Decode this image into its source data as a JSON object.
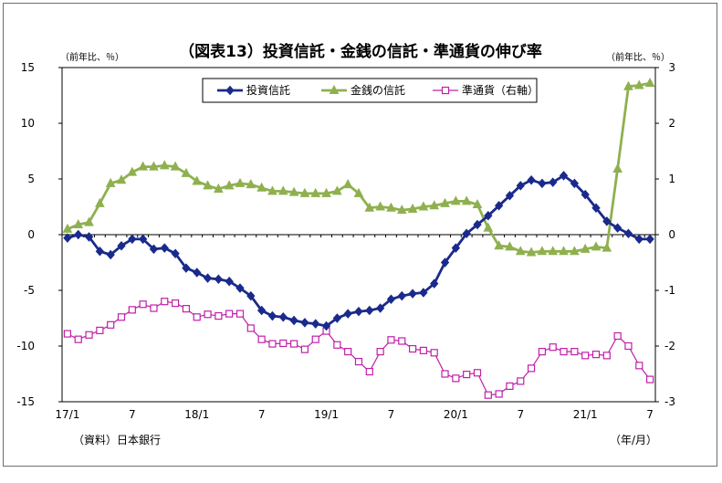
{
  "chart_data": {
    "type": "line",
    "title": "（図表13）投資信託・金銭の信託・準通貨の伸び率",
    "y_left_unit": "（前年比、％）",
    "y_right_unit": "（前年比、％）",
    "source_note": "（資料）日本銀行",
    "x_unit_note": "（年/月）",
    "x_ticks": [
      {
        "label": "17/1",
        "index": 0
      },
      {
        "label": "7",
        "index": 6
      },
      {
        "label": "18/1",
        "index": 12
      },
      {
        "label": "7",
        "index": 18
      },
      {
        "label": "19/1",
        "index": 24
      },
      {
        "label": "7",
        "index": 30
      },
      {
        "label": "20/1",
        "index": 36
      },
      {
        "label": "7",
        "index": 42
      },
      {
        "label": "21/1",
        "index": 48
      },
      {
        "label": "7",
        "index": 54
      }
    ],
    "x": [
      "2017/1",
      "2017/2",
      "2017/3",
      "2017/4",
      "2017/5",
      "2017/6",
      "2017/7",
      "2017/8",
      "2017/9",
      "2017/10",
      "2017/11",
      "2017/12",
      "2018/1",
      "2018/2",
      "2018/3",
      "2018/4",
      "2018/5",
      "2018/6",
      "2018/7",
      "2018/8",
      "2018/9",
      "2018/10",
      "2018/11",
      "2018/12",
      "2019/1",
      "2019/2",
      "2019/3",
      "2019/4",
      "2019/5",
      "2019/6",
      "2019/7",
      "2019/8",
      "2019/9",
      "2019/10",
      "2019/11",
      "2019/12",
      "2020/1",
      "2020/2",
      "2020/3",
      "2020/4",
      "2020/5",
      "2020/6",
      "2020/7",
      "2020/8",
      "2020/9",
      "2020/10",
      "2020/11",
      "2020/12",
      "2021/1",
      "2021/2",
      "2021/3",
      "2021/4",
      "2021/5",
      "2021/6",
      "2021/7"
    ],
    "y_left": {
      "min": -15,
      "max": 15,
      "ticks": [
        15,
        10,
        5,
        0,
        -5,
        -10,
        -15
      ]
    },
    "y_right": {
      "min": -3,
      "max": 3,
      "ticks": [
        3,
        2,
        1,
        0,
        -1,
        -2,
        -3
      ]
    },
    "series": [
      {
        "name": "投資信託",
        "axis": "left",
        "color": "#1a2a8c",
        "marker": "diamond",
        "values": [
          -0.3,
          0.0,
          -0.2,
          -1.5,
          -1.8,
          -1.0,
          -0.4,
          -0.4,
          -1.3,
          -1.2,
          -1.7,
          -3.0,
          -3.4,
          -3.9,
          -4.0,
          -4.2,
          -4.8,
          -5.5,
          -6.8,
          -7.3,
          -7.4,
          -7.7,
          -7.9,
          -8.0,
          -8.2,
          -7.5,
          -7.1,
          -6.9,
          -6.8,
          -6.6,
          -5.8,
          -5.5,
          -5.3,
          -5.2,
          -4.4,
          -2.5,
          -1.2,
          0.1,
          0.9,
          1.7,
          2.6,
          3.5,
          4.4,
          4.9,
          4.6,
          4.7,
          5.3,
          4.6,
          3.6,
          2.4,
          1.2,
          0.6,
          0.1,
          -0.4,
          -0.4
        ]
      },
      {
        "name": "金銭の信託",
        "axis": "left",
        "color": "#8fb04f",
        "marker": "triangle",
        "values": [
          0.5,
          0.9,
          1.1,
          2.8,
          4.6,
          4.9,
          5.6,
          6.1,
          6.1,
          6.2,
          6.1,
          5.5,
          4.8,
          4.4,
          4.1,
          4.4,
          4.6,
          4.5,
          4.2,
          3.9,
          3.9,
          3.8,
          3.7,
          3.7,
          3.7,
          3.9,
          4.5,
          3.7,
          2.4,
          2.5,
          2.4,
          2.2,
          2.3,
          2.5,
          2.6,
          2.8,
          3.0,
          3.0,
          2.7,
          0.6,
          -1.0,
          -1.1,
          -1.5,
          -1.6,
          -1.5,
          -1.5,
          -1.5,
          -1.5,
          -1.3,
          -1.1,
          -1.2,
          5.9,
          13.3,
          13.4,
          13.6
        ]
      },
      {
        "name": "準通貨（右軸）",
        "axis": "right",
        "color": "#c020a8",
        "marker": "square",
        "values": [
          -1.78,
          -1.88,
          -1.8,
          -1.72,
          -1.62,
          -1.48,
          -1.35,
          -1.25,
          -1.32,
          -1.2,
          -1.23,
          -1.33,
          -1.48,
          -1.43,
          -1.46,
          -1.42,
          -1.42,
          -1.68,
          -1.88,
          -1.96,
          -1.95,
          -1.96,
          -2.06,
          -1.88,
          -1.73,
          -1.98,
          -2.1,
          -2.28,
          -2.46,
          -2.1,
          -1.89,
          -1.91,
          -2.05,
          -2.08,
          -2.12,
          -2.5,
          -2.58,
          -2.51,
          -2.48,
          -2.88,
          -2.86,
          -2.72,
          -2.63,
          -2.4,
          -2.1,
          -2.02,
          -2.1,
          -2.1,
          -2.17,
          -2.15,
          -2.17,
          -1.82,
          -2.0,
          -2.35,
          -2.6
        ]
      }
    ]
  }
}
